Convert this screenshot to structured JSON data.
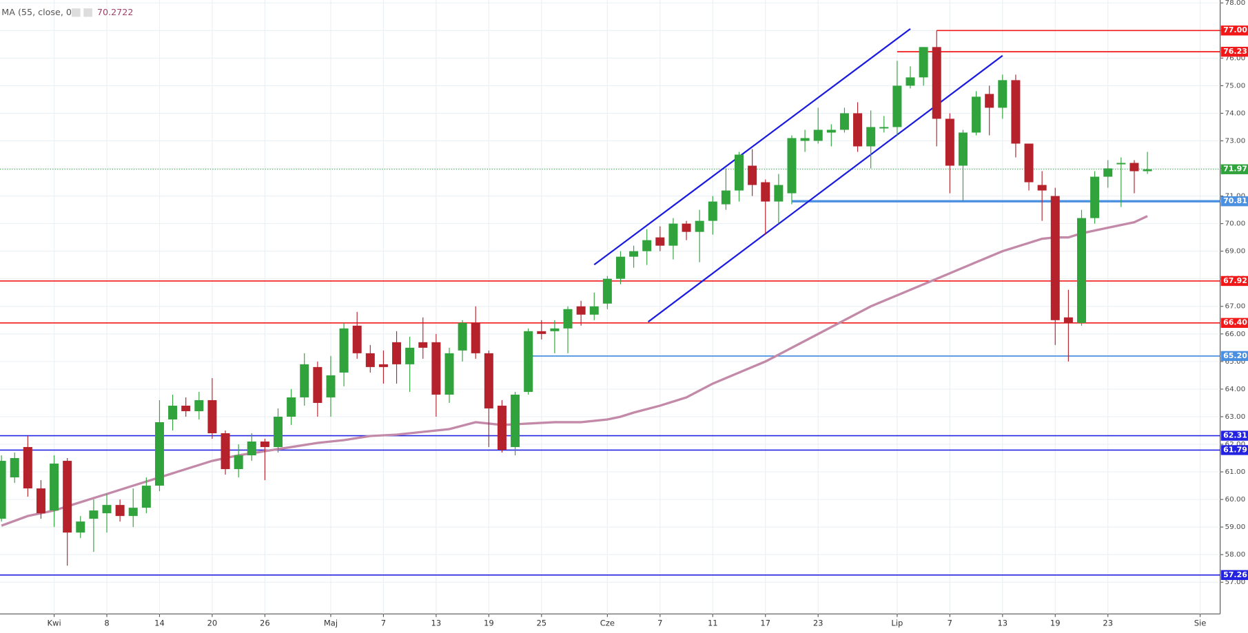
{
  "chart_data": {
    "type": "candlestick",
    "x": [
      -4,
      -3,
      -2,
      -1,
      0,
      1,
      2,
      3,
      4,
      5,
      6,
      7,
      8,
      9,
      10,
      11,
      12,
      13,
      14,
      15,
      16,
      17,
      18,
      19,
      20,
      21,
      22,
      23,
      24,
      25,
      26,
      27,
      28,
      29,
      30,
      31,
      32,
      33,
      34,
      35,
      36,
      37,
      38,
      39,
      40,
      41,
      42,
      43,
      44,
      45,
      46,
      47,
      48,
      49,
      50,
      51,
      52,
      53,
      54,
      55,
      56,
      57,
      58,
      59,
      60,
      61,
      62,
      63,
      64,
      65,
      66,
      67,
      68,
      69,
      70,
      71,
      72,
      73,
      74,
      75,
      76,
      77,
      78,
      79,
      80,
      81,
      82,
      83
    ],
    "open": [
      59.3,
      60.8,
      61.9,
      60.4,
      59.6,
      61.4,
      58.8,
      59.3,
      59.5,
      59.8,
      59.4,
      59.7,
      60.5,
      62.9,
      63.4,
      63.2,
      63.6,
      62.4,
      61.1,
      61.6,
      62.1,
      61.9,
      63.0,
      63.7,
      64.8,
      63.7,
      64.6,
      66.3,
      65.3,
      64.9,
      65.7,
      64.9,
      65.7,
      65.7,
      63.8,
      65.4,
      66.4,
      65.3,
      63.4,
      61.9,
      63.9,
      66.1,
      66.1,
      66.2,
      67.0,
      66.7,
      67.1,
      68.0,
      68.8,
      69.0,
      69.5,
      69.2,
      70.0,
      69.7,
      70.1,
      70.7,
      71.2,
      72.1,
      71.5,
      70.8,
      71.1,
      73.0,
      73.0,
      73.3,
      73.4,
      74.0,
      72.8,
      73.45,
      73.5,
      75.0,
      75.3,
      76.4,
      73.8,
      72.1,
      73.3,
      74.7,
      74.2,
      75.2,
      72.9,
      71.4,
      71.0,
      66.6,
      66.4,
      70.2,
      71.7,
      72.15,
      72.2,
      71.9
    ],
    "high": [
      61.6,
      61.7,
      62.3,
      60.7,
      61.6,
      61.5,
      59.4,
      60.0,
      60.2,
      60.0,
      60.4,
      60.8,
      63.6,
      63.8,
      63.7,
      63.9,
      64.4,
      62.5,
      62.0,
      62.4,
      62.2,
      63.3,
      64.0,
      65.3,
      65.0,
      65.2,
      66.4,
      66.8,
      65.6,
      65.4,
      66.1,
      65.9,
      66.6,
      66.0,
      65.5,
      66.5,
      67.0,
      65.4,
      63.6,
      63.9,
      66.2,
      66.5,
      66.5,
      67.0,
      67.2,
      67.5,
      68.1,
      69.0,
      69.2,
      69.8,
      69.9,
      70.2,
      70.1,
      70.5,
      71.0,
      72.0,
      72.6,
      72.7,
      71.6,
      71.8,
      73.2,
      73.4,
      74.2,
      73.6,
      74.2,
      74.4,
      74.1,
      73.9,
      75.9,
      75.7,
      76.4,
      77.0,
      74.0,
      73.4,
      74.8,
      75.0,
      75.4,
      75.4,
      72.9,
      71.9,
      71.3,
      67.6,
      70.5,
      71.9,
      72.3,
      72.4,
      72.3,
      72.6
    ],
    "low": [
      59.2,
      60.6,
      60.1,
      59.3,
      59.0,
      57.6,
      58.6,
      58.1,
      58.8,
      59.2,
      59.0,
      59.5,
      60.3,
      62.5,
      63.0,
      62.9,
      62.2,
      60.9,
      60.8,
      61.4,
      60.7,
      61.7,
      62.7,
      63.4,
      63.0,
      63.0,
      64.1,
      65.1,
      64.6,
      64.2,
      64.2,
      63.9,
      65.1,
      63.0,
      63.5,
      65.0,
      65.1,
      61.9,
      61.7,
      61.6,
      63.8,
      65.8,
      65.3,
      65.3,
      66.3,
      66.5,
      66.9,
      67.8,
      68.4,
      68.5,
      69.0,
      68.7,
      69.4,
      68.6,
      69.6,
      70.5,
      70.8,
      71.0,
      69.6,
      70.0,
      70.7,
      72.6,
      72.9,
      72.8,
      73.3,
      72.6,
      72.0,
      73.3,
      73.2,
      74.9,
      75.0,
      72.8,
      71.1,
      70.8,
      73.2,
      73.2,
      73.8,
      72.4,
      71.2,
      70.1,
      65.6,
      65.0,
      66.3,
      70.0,
      71.3,
      70.6,
      71.1,
      71.8
    ],
    "close": [
      61.4,
      61.5,
      60.4,
      59.5,
      61.3,
      58.8,
      59.2,
      59.6,
      59.8,
      59.4,
      59.7,
      60.5,
      62.8,
      63.4,
      63.2,
      63.6,
      62.4,
      61.1,
      61.6,
      62.1,
      61.9,
      63.0,
      63.7,
      64.9,
      63.5,
      64.5,
      66.2,
      65.3,
      64.8,
      64.8,
      64.9,
      65.5,
      65.5,
      63.8,
      65.3,
      66.4,
      65.3,
      63.3,
      61.8,
      63.8,
      66.1,
      66.0,
      66.2,
      66.9,
      66.7,
      67.0,
      68.0,
      68.8,
      69.0,
      69.4,
      69.2,
      70.0,
      69.7,
      70.1,
      70.8,
      71.2,
      72.5,
      71.4,
      70.8,
      71.4,
      73.1,
      73.1,
      73.4,
      73.4,
      74.0,
      72.8,
      73.5,
      73.5,
      75.0,
      75.3,
      76.4,
      73.8,
      72.1,
      73.3,
      74.6,
      74.2,
      75.2,
      72.9,
      71.5,
      71.2,
      66.5,
      66.4,
      70.2,
      71.7,
      72.0,
      72.2,
      71.9,
      71.97
    ],
    "up_color": "#31a33c",
    "down_color": "#b5222c",
    "ma": {
      "name": "MA (55, close, 0)",
      "last": 70.2722,
      "color": "#c389a8",
      "x": [
        -4,
        -2,
        0,
        2,
        4,
        6,
        8,
        10,
        12,
        14,
        16,
        18,
        20,
        22,
        24,
        26,
        28,
        30,
        32,
        33,
        34,
        36,
        38,
        40,
        42,
        43,
        44,
        46,
        48,
        50,
        52,
        54,
        56,
        58,
        60,
        62,
        64,
        66,
        68,
        70,
        72,
        74,
        75,
        76,
        77,
        78,
        80,
        82,
        83
      ],
      "values": [
        59.05,
        59.4,
        59.6,
        59.9,
        60.2,
        60.5,
        60.8,
        61.1,
        61.4,
        61.6,
        61.75,
        61.9,
        62.05,
        62.15,
        62.3,
        62.35,
        62.45,
        62.55,
        62.8,
        62.75,
        62.7,
        62.75,
        62.8,
        62.8,
        62.9,
        63.0,
        63.15,
        63.4,
        63.7,
        64.2,
        64.6,
        65.0,
        65.5,
        66.0,
        66.5,
        67.0,
        67.4,
        67.8,
        68.2,
        68.6,
        69.0,
        69.3,
        69.45,
        69.5,
        69.5,
        69.65,
        69.85,
        70.05,
        70.27
      ]
    },
    "levels": [
      {
        "value": 77.0,
        "label": "77.00",
        "color": "#f01818",
        "width": 1.5,
        "start": 67
      },
      {
        "value": 76.23,
        "label": "76.23",
        "color": "#f01818",
        "width": 1.5,
        "start": 64
      },
      {
        "value": 70.81,
        "label": "70.81",
        "color": "#4a8fe0",
        "width": 3,
        "start": 56
      },
      {
        "value": 67.92,
        "label": "67.92",
        "color": "#f01818",
        "width": 1.5
      },
      {
        "value": 66.4,
        "label": "66.40",
        "color": "#f01818",
        "width": 1.5
      },
      {
        "value": 65.2,
        "label": "65.20",
        "color": "#4a8fe0",
        "width": 1.5,
        "start": 36
      },
      {
        "value": 62.31,
        "label": "62.31",
        "color": "#2222e0",
        "width": 1.5
      },
      {
        "value": 61.79,
        "label": "61.79",
        "color": "#2222e0",
        "width": 1.5
      },
      {
        "value": 57.26,
        "label": "57.26",
        "color": "#2222e0",
        "width": 1.5
      }
    ],
    "last_price": {
      "value": 71.97,
      "label": "71.97",
      "color": "#31a33c"
    },
    "trendlines": [
      {
        "x": [
          41.0,
          65.0
        ],
        "y": [
          68.51,
          77.06
        ],
        "color": "#1a1ae0"
      },
      {
        "x": [
          45.1,
          72.0
        ],
        "y": [
          66.44,
          76.09
        ],
        "color": "#1a1ae0"
      }
    ],
    "xlim": [
      -4.11,
      88.52
    ],
    "ylim": [
      55.85,
      78.106
    ],
    "xticks": [
      {
        "value": 0,
        "label": "Kwi"
      },
      {
        "value": 4,
        "label": "8"
      },
      {
        "value": 8,
        "label": "14"
      },
      {
        "value": 12,
        "label": "20"
      },
      {
        "value": 16,
        "label": "26"
      },
      {
        "value": 21,
        "label": "Maj"
      },
      {
        "value": 25,
        "label": "7"
      },
      {
        "value": 29,
        "label": "13"
      },
      {
        "value": 33,
        "label": "19"
      },
      {
        "value": 37,
        "label": "25"
      },
      {
        "value": 42,
        "label": "Cze"
      },
      {
        "value": 46,
        "label": "7"
      },
      {
        "value": 50,
        "label": "11"
      },
      {
        "value": 54,
        "label": "17"
      },
      {
        "value": 58,
        "label": "23"
      },
      {
        "value": 64,
        "label": "Lip"
      },
      {
        "value": 68,
        "label": "7"
      },
      {
        "value": 72,
        "label": "13"
      },
      {
        "value": 76,
        "label": "19"
      },
      {
        "value": 80,
        "label": "23"
      },
      {
        "value": 87,
        "label": "Sie"
      }
    ],
    "yticks": [
      {
        "value": 57,
        "label": "57.00"
      },
      {
        "value": 58,
        "label": "58.00"
      },
      {
        "value": 59,
        "label": "59.00"
      },
      {
        "value": 60,
        "label": "60.00"
      },
      {
        "value": 61,
        "label": "61.00"
      },
      {
        "value": 62,
        "label": "62.00"
      },
      {
        "value": 63,
        "label": "63.00"
      },
      {
        "value": 64,
        "label": "64.00"
      },
      {
        "value": 65,
        "label": "65.00"
      },
      {
        "value": 66,
        "label": "66.00"
      },
      {
        "value": 67,
        "label": "67.00"
      },
      {
        "value": 68,
        "label": "68.00"
      },
      {
        "value": 69,
        "label": "69.00"
      },
      {
        "value": 70,
        "label": "70.00"
      },
      {
        "value": 71,
        "label": "71.00"
      },
      {
        "value": 72,
        "label": "72.00"
      },
      {
        "value": 73,
        "label": "73.00"
      },
      {
        "value": 74,
        "label": "74.00"
      },
      {
        "value": 75,
        "label": "75.00"
      },
      {
        "value": 76,
        "label": "76.00"
      },
      {
        "value": 77,
        "label": "77.00"
      },
      {
        "value": 78,
        "label": "78.00"
      }
    ],
    "grid": true
  }
}
